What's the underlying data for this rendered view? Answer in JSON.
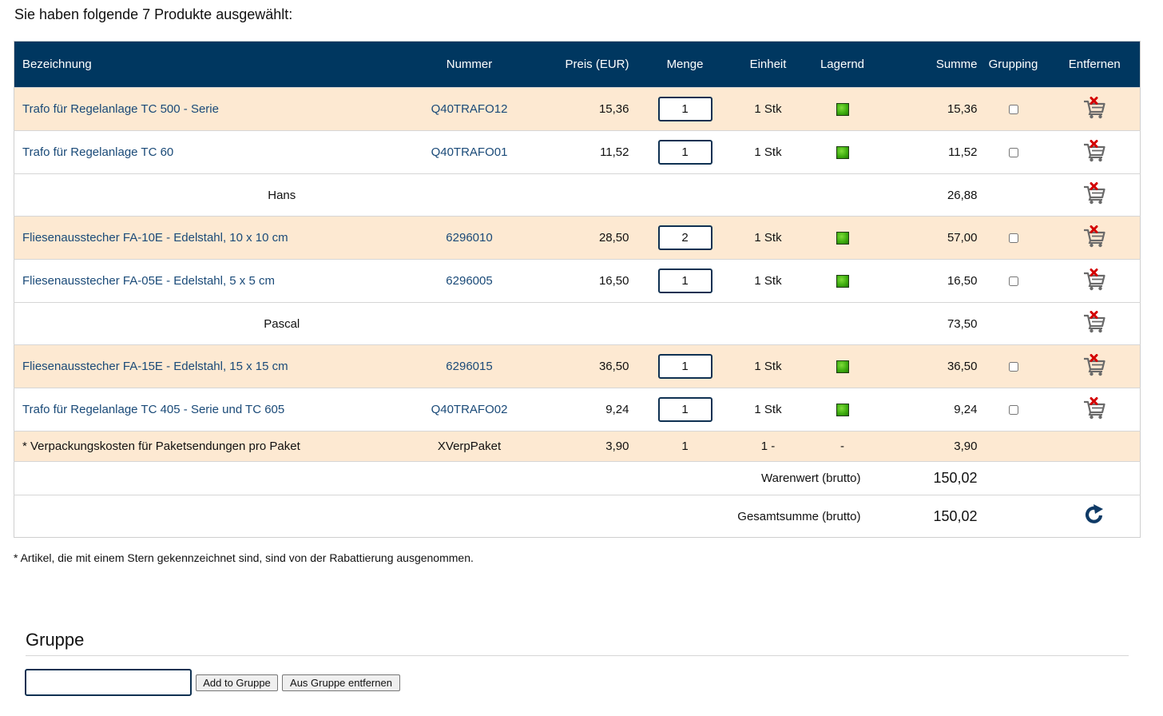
{
  "heading": "Sie haben folgende 7 Produkte ausgewählt:",
  "columns": [
    "Bezeichnung",
    "Nummer",
    "Preis (EUR)",
    "Menge",
    "Einheit",
    "Lagernd",
    "Summe",
    "Grupping",
    "Entfernen"
  ],
  "rows": [
    {
      "name": "Trafo für Regelanlage TC 500 - Serie",
      "number": "Q40TRAFO12",
      "price": "15,36",
      "qty": "1",
      "unit": "1 Stk",
      "sum": "15,36"
    },
    {
      "name": "Trafo für Regelanlage TC 60",
      "number": "Q40TRAFO01",
      "price": "11,52",
      "qty": "1",
      "unit": "1 Stk",
      "sum": "11,52"
    },
    {
      "group": "Hans",
      "sum": "26,88"
    },
    {
      "name": "Fliesenausstecher FA-10E - Edelstahl, 10 x 10 cm",
      "number": "6296010",
      "price": "28,50",
      "qty": "2",
      "unit": "1 Stk",
      "sum": "57,00"
    },
    {
      "name": "Fliesenausstecher FA-05E - Edelstahl, 5 x 5 cm",
      "number": "6296005",
      "price": "16,50",
      "qty": "1",
      "unit": "1 Stk",
      "sum": "16,50"
    },
    {
      "group": "Pascal",
      "sum": "73,50"
    },
    {
      "name": "Fliesenausstecher FA-15E - Edelstahl, 15 x 15 cm",
      "number": "6296015",
      "price": "36,50",
      "qty": "1",
      "unit": "1 Stk",
      "sum": "36,50"
    },
    {
      "name": "Trafo für Regelanlage TC 405 - Serie und TC 605",
      "number": "Q40TRAFO02",
      "price": "9,24",
      "qty": "1",
      "unit": "1 Stk",
      "sum": "9,24"
    }
  ],
  "packaging": {
    "name": "* Verpackungskosten für Paketsendungen pro Paket",
    "number": "XVerpPaket",
    "price": "3,90",
    "qty": "1",
    "unit": "1 -",
    "stock": "-",
    "sum": "3,90"
  },
  "totals": {
    "warenwert_label": "Warenwert (brutto)",
    "warenwert": "150,02",
    "gesamt_label": "Gesamtsumme (brutto)",
    "gesamt": "150,02"
  },
  "footnote": "* Artikel, die mit einem Stern gekennzeichnet sind, sind von der Rabattierung ausgenommen.",
  "gruppe": {
    "title": "Gruppe",
    "input_value": "",
    "add_label": "Add to Gruppe",
    "remove_label": "Aus Gruppe entfernen"
  },
  "colors": {
    "header_bg": "#003760",
    "row_highlight": "#fde9d2",
    "link": "#1a4a78",
    "stock_green": "#3fae10",
    "remove_red": "#d40000"
  },
  "icons": {
    "stock": "green-square-icon",
    "remove": "cart-remove-icon",
    "refresh": "refresh-icon"
  }
}
